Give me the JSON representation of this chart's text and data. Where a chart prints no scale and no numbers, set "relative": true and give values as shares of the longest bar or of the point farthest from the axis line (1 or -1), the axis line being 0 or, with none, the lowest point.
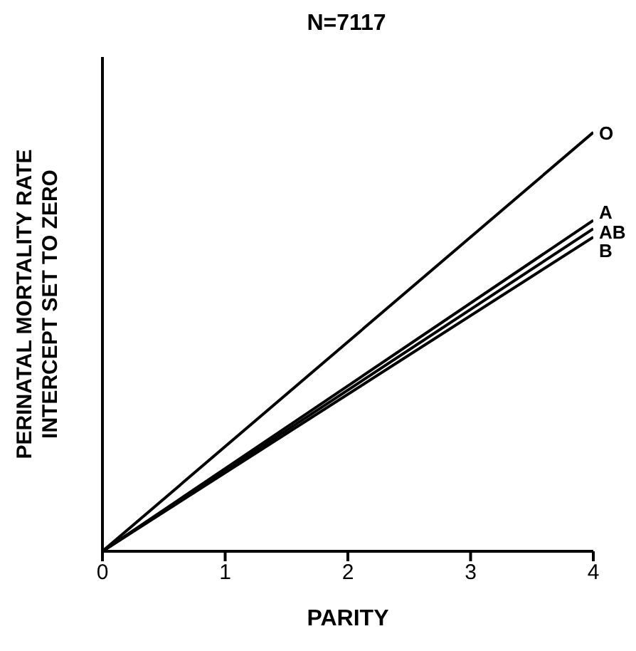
{
  "chart_data": {
    "type": "line",
    "title": "N=7117",
    "xlabel": "PARITY",
    "ylabel": "PERINATAL MORTALITY RATE\nINTERCEPT SET TO ZERO",
    "relative": true,
    "x": [
      0,
      4
    ],
    "xlim": [
      0,
      4
    ],
    "xticks": [
      0,
      1,
      2,
      3,
      4
    ],
    "grid": false,
    "legend": false,
    "marker": "none",
    "line_style": "solid",
    "series": [
      {
        "name": "O",
        "color": "#000000",
        "values": [
          0,
          1
        ]
      },
      {
        "name": "A",
        "color": "#000000",
        "values": [
          0,
          0.79
        ]
      },
      {
        "name": "AB",
        "color": "#000000",
        "values": [
          0,
          0.77
        ]
      },
      {
        "name": "B",
        "color": "#000000",
        "values": [
          0,
          0.75
        ]
      }
    ]
  }
}
